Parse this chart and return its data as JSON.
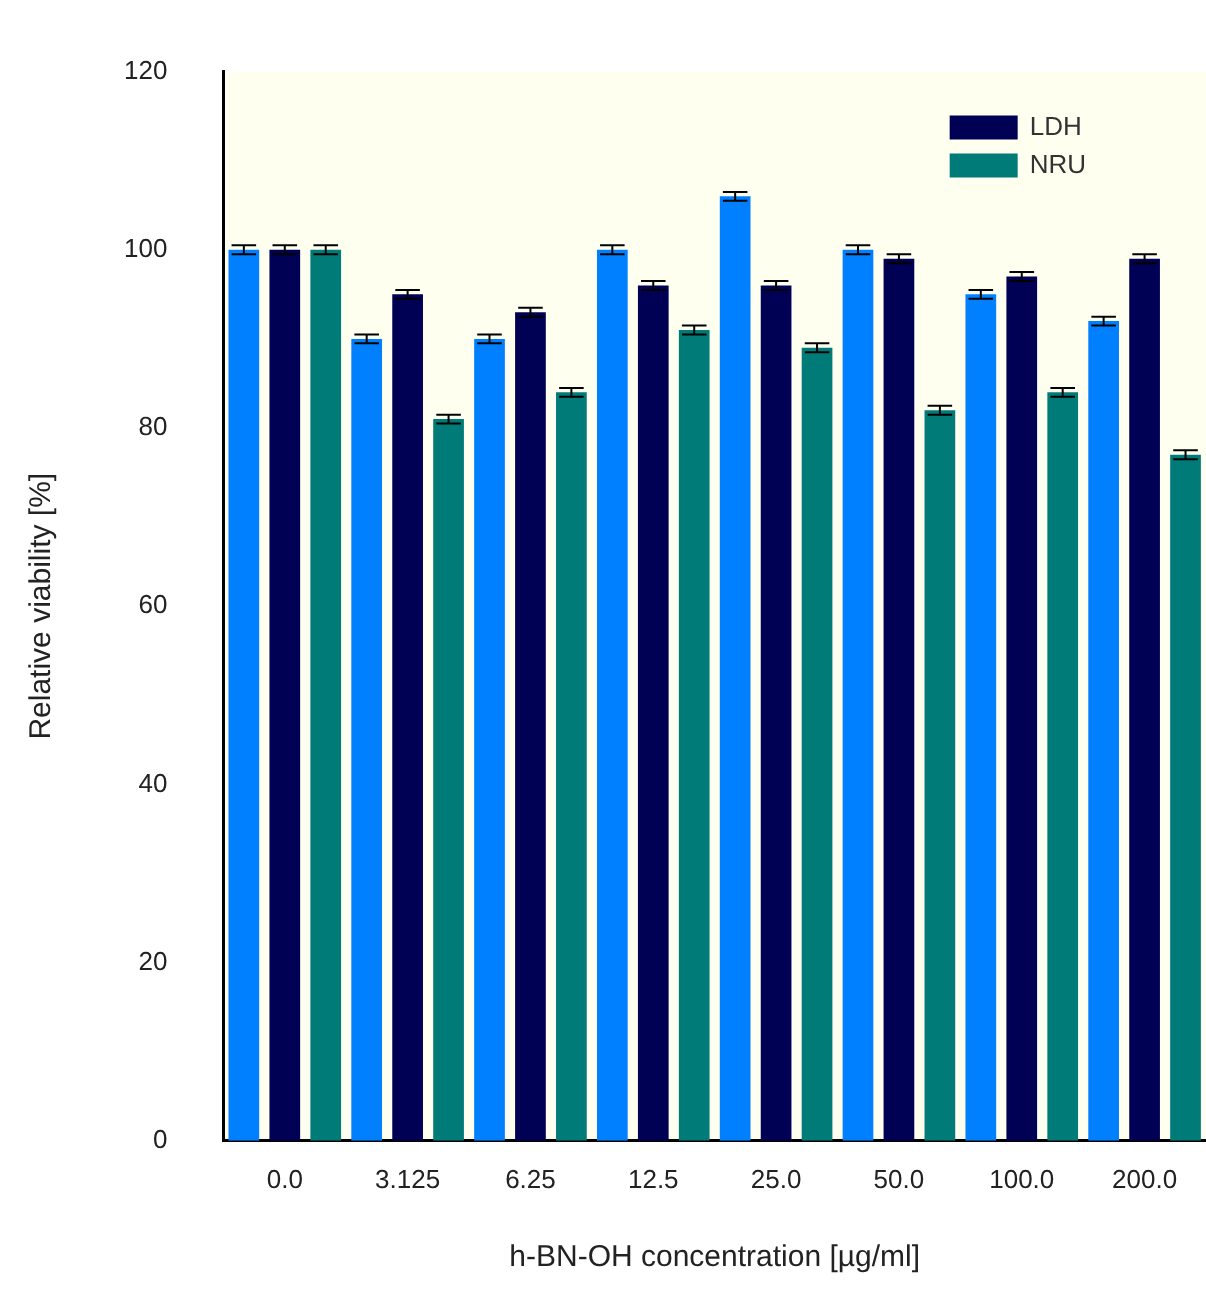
{
  "chart_data": {
    "type": "bar",
    "xlabel": "h-BN-OH concentration [µg/ml]",
    "ylabel": "Relative viability [%]",
    "categories": [
      "0.0",
      "3.125",
      "6.25",
      "12.5",
      "25.0",
      "50.0",
      "100.0",
      "200.0"
    ],
    "series": [
      {
        "color": "#0080ff",
        "values": [
          100,
          90,
          90,
          100,
          106,
          100,
          95,
          92
        ],
        "errors": [
          0.5,
          0.5,
          0.5,
          0.5,
          0.5,
          0.5,
          0.5,
          0.5
        ]
      },
      {
        "name": "LDH",
        "color": "#000055",
        "values": [
          100,
          95,
          93,
          96,
          96,
          99,
          97,
          99
        ],
        "errors": [
          0.5,
          0.5,
          0.5,
          0.5,
          0.5,
          0.5,
          0.5,
          0.5
        ]
      },
      {
        "name": "NRU",
        "color": "#007b78",
        "values": [
          100,
          81,
          84,
          91,
          89,
          82,
          84,
          77
        ],
        "errors": [
          0.5,
          0.5,
          0.5,
          0.5,
          0.5,
          0.5,
          0.5,
          0.5
        ]
      }
    ],
    "ylim": [
      0,
      120
    ],
    "yticks": [
      0,
      20,
      40,
      60,
      80,
      100,
      120
    ],
    "grid": false,
    "legend": "top right"
  }
}
